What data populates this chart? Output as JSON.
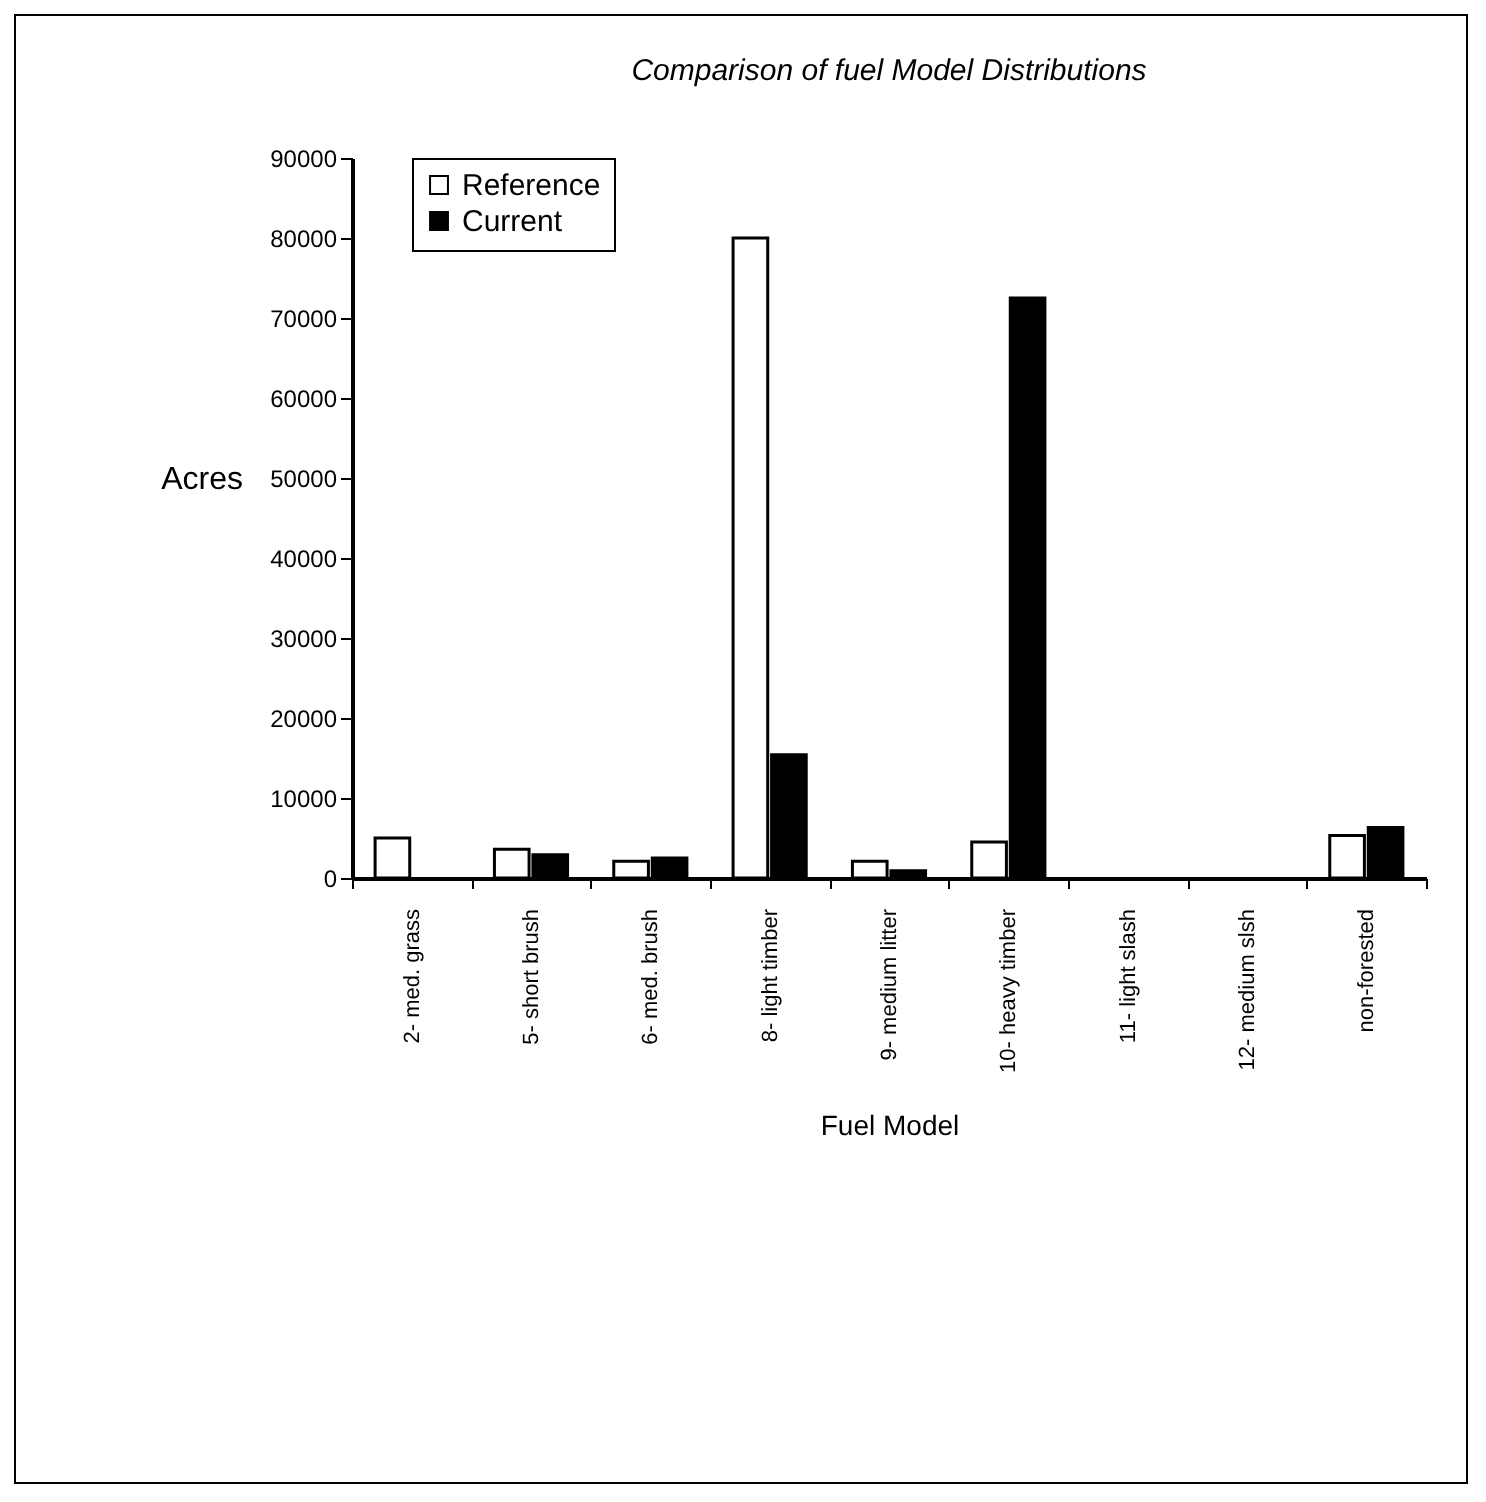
{
  "chart_data": {
    "type": "bar",
    "title": "Comparison of fuel Model Distributions",
    "xlabel": "Fuel Model",
    "ylabel": "Acres",
    "categories": [
      "2- med. grass",
      "5- short brush",
      "6- med. brush",
      "8- light timber",
      "9- medium litter",
      "10- heavy timber",
      "11- light slash",
      "12- medium slsh",
      "non-forested"
    ],
    "series": [
      {
        "name": "Reference",
        "color": "#ffffff",
        "values": [
          5000,
          3600,
          2100,
          80000,
          2100,
          4500,
          null,
          null,
          5300
        ]
      },
      {
        "name": "Current",
        "color": "#000000",
        "values": [
          null,
          2900,
          2500,
          15400,
          900,
          72500,
          null,
          null,
          6300
        ]
      }
    ],
    "ylim": [
      0,
      90000
    ],
    "yticks": [
      0,
      10000,
      20000,
      30000,
      40000,
      50000,
      60000,
      70000,
      80000,
      90000
    ],
    "grid": false,
    "legend": "top left"
  }
}
